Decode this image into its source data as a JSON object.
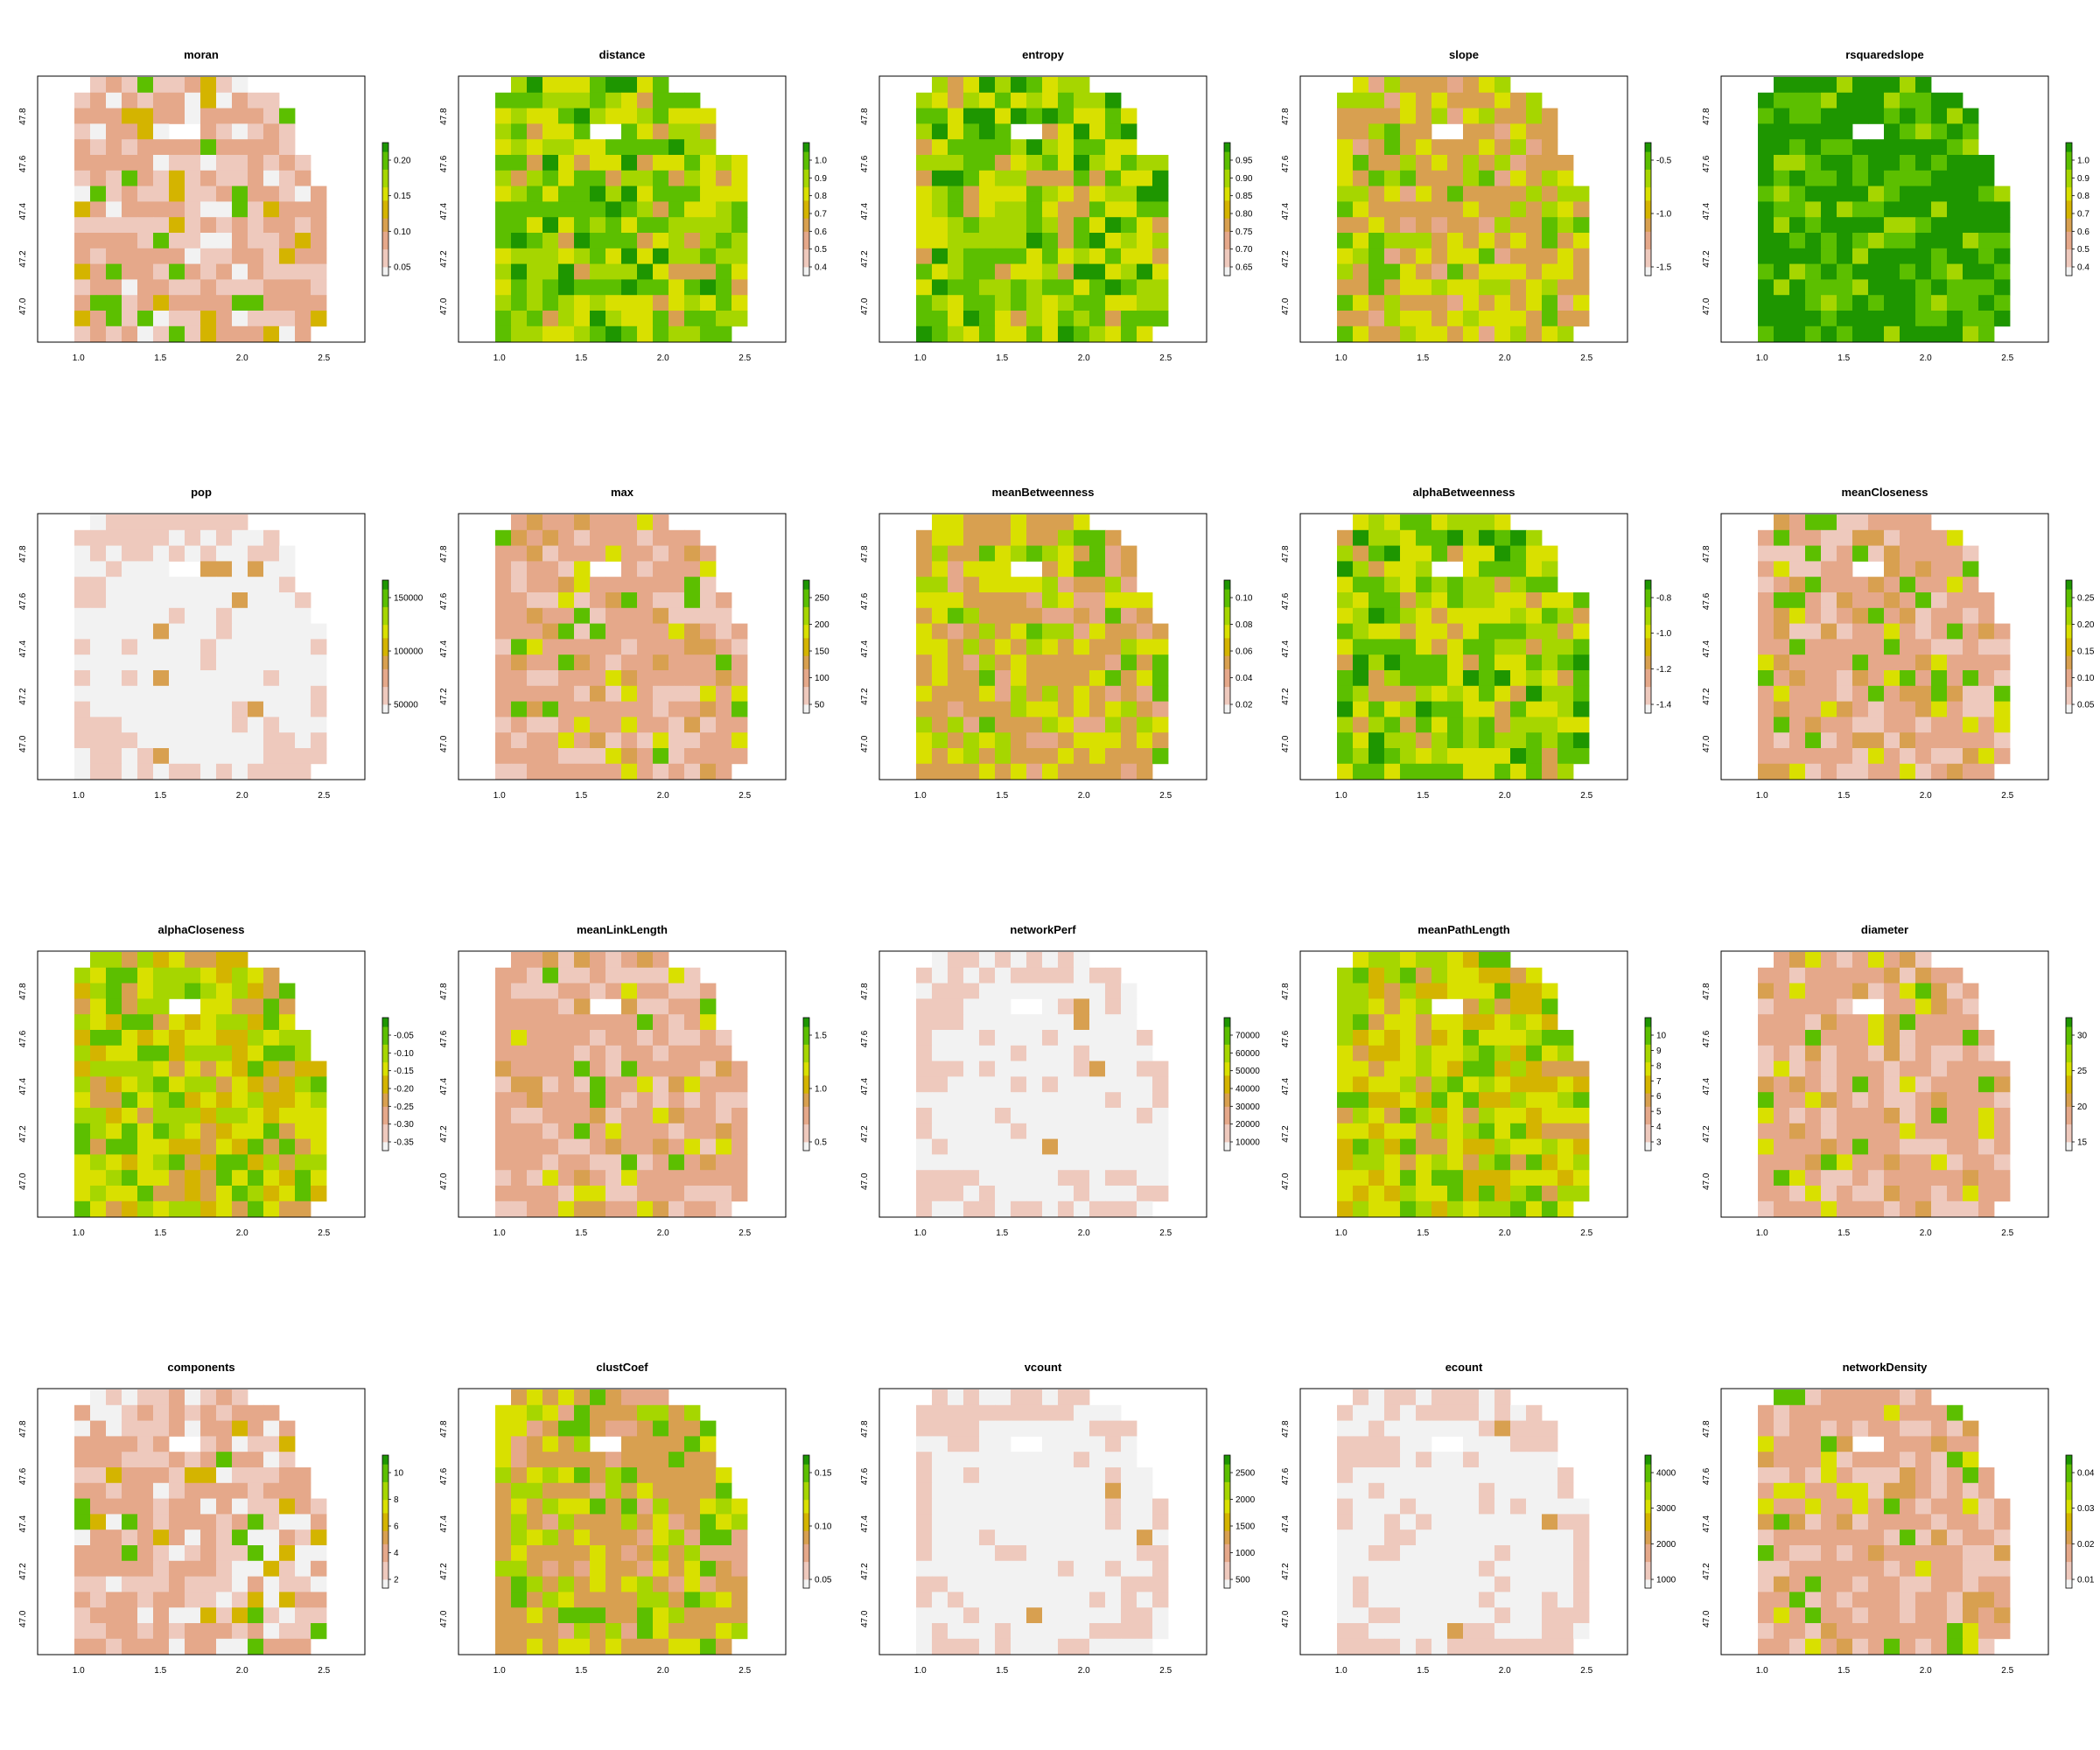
{
  "figure": {
    "background": "#ffffff",
    "palette": [
      "#f2f2f2",
      "#eec9bd",
      "#e5a88a",
      "#d8a050",
      "#d4b400",
      "#d9e000",
      "#a6d600",
      "#5cbf00",
      "#1e9600"
    ],
    "x_ticks": [
      "1.0",
      "1.5",
      "2.0",
      "2.5"
    ],
    "y_ticks": [
      "47.0",
      "47.2",
      "47.4",
      "47.6",
      "47.8"
    ]
  },
  "chart_data": [
    {
      "type": "heatmap",
      "title": "moran",
      "xlim": [
        0.75,
        2.75
      ],
      "ylim": [
        46.85,
        47.97
      ],
      "legend": [
        "0.05",
        "0.10",
        "0.15",
        "0.20"
      ],
      "pattern": "mixed"
    },
    {
      "type": "heatmap",
      "title": "distance",
      "xlim": [
        0.75,
        2.75
      ],
      "ylim": [
        46.85,
        47.97
      ],
      "legend": [
        "0.4",
        "0.5",
        "0.6",
        "0.7",
        "0.8",
        "0.9",
        "1.0"
      ],
      "pattern": "high"
    },
    {
      "type": "heatmap",
      "title": "entropy",
      "xlim": [
        0.75,
        2.75
      ],
      "ylim": [
        46.85,
        47.97
      ],
      "legend": [
        "0.65",
        "0.70",
        "0.75",
        "0.80",
        "0.85",
        "0.90",
        "0.95"
      ],
      "pattern": "high"
    },
    {
      "type": "heatmap",
      "title": "slope",
      "xlim": [
        0.75,
        2.75
      ],
      "ylim": [
        46.85,
        47.97
      ],
      "legend": [
        "-1.5",
        "-1.0",
        "-0.5"
      ],
      "pattern": "mid"
    },
    {
      "type": "heatmap",
      "title": "rsquaredslope",
      "xlim": [
        0.75,
        2.75
      ],
      "ylim": [
        46.85,
        47.97
      ],
      "legend": [
        "0.4",
        "0.5",
        "0.6",
        "0.7",
        "0.8",
        "0.9",
        "1.0"
      ],
      "pattern": "veryhigh"
    },
    {
      "type": "heatmap",
      "title": "pop",
      "xlim": [
        0.75,
        2.75
      ],
      "ylim": [
        46.85,
        47.97
      ],
      "legend": [
        "50000",
        "100000",
        "150000"
      ],
      "pattern": "sparse"
    },
    {
      "type": "heatmap",
      "title": "max",
      "xlim": [
        0.75,
        2.75
      ],
      "ylim": [
        46.85,
        47.97
      ],
      "legend": [
        "50",
        "100",
        "150",
        "200",
        "250"
      ],
      "pattern": "low"
    },
    {
      "type": "heatmap",
      "title": "meanBetweenness",
      "xlim": [
        0.75,
        2.75
      ],
      "ylim": [
        46.85,
        47.97
      ],
      "legend": [
        "0.02",
        "0.04",
        "0.06",
        "0.08",
        "0.10"
      ],
      "pattern": "mid"
    },
    {
      "type": "heatmap",
      "title": "alphaBetweenness",
      "xlim": [
        0.75,
        2.75
      ],
      "ylim": [
        46.85,
        47.97
      ],
      "legend": [
        "-1.4",
        "-1.2",
        "-1.0",
        "-0.8"
      ],
      "pattern": "high"
    },
    {
      "type": "heatmap",
      "title": "meanCloseness",
      "xlim": [
        0.75,
        2.75
      ],
      "ylim": [
        46.85,
        47.97
      ],
      "legend": [
        "0.05",
        "0.10",
        "0.15",
        "0.20",
        "0.25"
      ],
      "pattern": "low"
    },
    {
      "type": "heatmap",
      "title": "alphaCloseness",
      "xlim": [
        0.75,
        2.75
      ],
      "ylim": [
        46.85,
        47.97
      ],
      "legend": [
        "-0.35",
        "-0.30",
        "-0.25",
        "-0.20",
        "-0.15",
        "-0.10",
        "-0.05"
      ],
      "pattern": "midhigh"
    },
    {
      "type": "heatmap",
      "title": "meanLinkLength",
      "xlim": [
        0.75,
        2.75
      ],
      "ylim": [
        46.85,
        47.97
      ],
      "legend": [
        "0.5",
        "1.0",
        "1.5"
      ],
      "pattern": "low"
    },
    {
      "type": "heatmap",
      "title": "networkPerf",
      "xlim": [
        0.75,
        2.75
      ],
      "ylim": [
        46.85,
        47.97
      ],
      "legend": [
        "10000",
        "20000",
        "30000",
        "40000",
        "50000",
        "60000",
        "70000"
      ],
      "pattern": "sparse"
    },
    {
      "type": "heatmap",
      "title": "meanPathLength",
      "xlim": [
        0.75,
        2.75
      ],
      "ylim": [
        46.85,
        47.97
      ],
      "legend": [
        "3",
        "4",
        "5",
        "6",
        "7",
        "8",
        "9",
        "10"
      ],
      "pattern": "midhigh"
    },
    {
      "type": "heatmap",
      "title": "diameter",
      "xlim": [
        0.75,
        2.75
      ],
      "ylim": [
        46.85,
        47.97
      ],
      "legend": [
        "15",
        "20",
        "25",
        "30"
      ],
      "pattern": "low"
    },
    {
      "type": "heatmap",
      "title": "components",
      "xlim": [
        0.75,
        2.75
      ],
      "ylim": [
        46.85,
        47.97
      ],
      "legend": [
        "2",
        "4",
        "6",
        "8",
        "10"
      ],
      "pattern": "lowpale"
    },
    {
      "type": "heatmap",
      "title": "clustCoef",
      "xlim": [
        0.75,
        2.75
      ],
      "ylim": [
        46.85,
        47.97
      ],
      "legend": [
        "0.05",
        "0.10",
        "0.15"
      ],
      "pattern": "mid"
    },
    {
      "type": "heatmap",
      "title": "vcount",
      "xlim": [
        0.75,
        2.75
      ],
      "ylim": [
        46.85,
        47.97
      ],
      "legend": [
        "500",
        "1000",
        "1500",
        "2000",
        "2500"
      ],
      "pattern": "sparse"
    },
    {
      "type": "heatmap",
      "title": "ecount",
      "xlim": [
        0.75,
        2.75
      ],
      "ylim": [
        46.85,
        47.97
      ],
      "legend": [
        "1000",
        "2000",
        "3000",
        "4000"
      ],
      "pattern": "sparse"
    },
    {
      "type": "heatmap",
      "title": "networkDensity",
      "xlim": [
        0.75,
        2.75
      ],
      "ylim": [
        46.85,
        47.97
      ],
      "legend": [
        "0.01",
        "0.02",
        "0.03",
        "0.04"
      ],
      "pattern": "low"
    }
  ]
}
